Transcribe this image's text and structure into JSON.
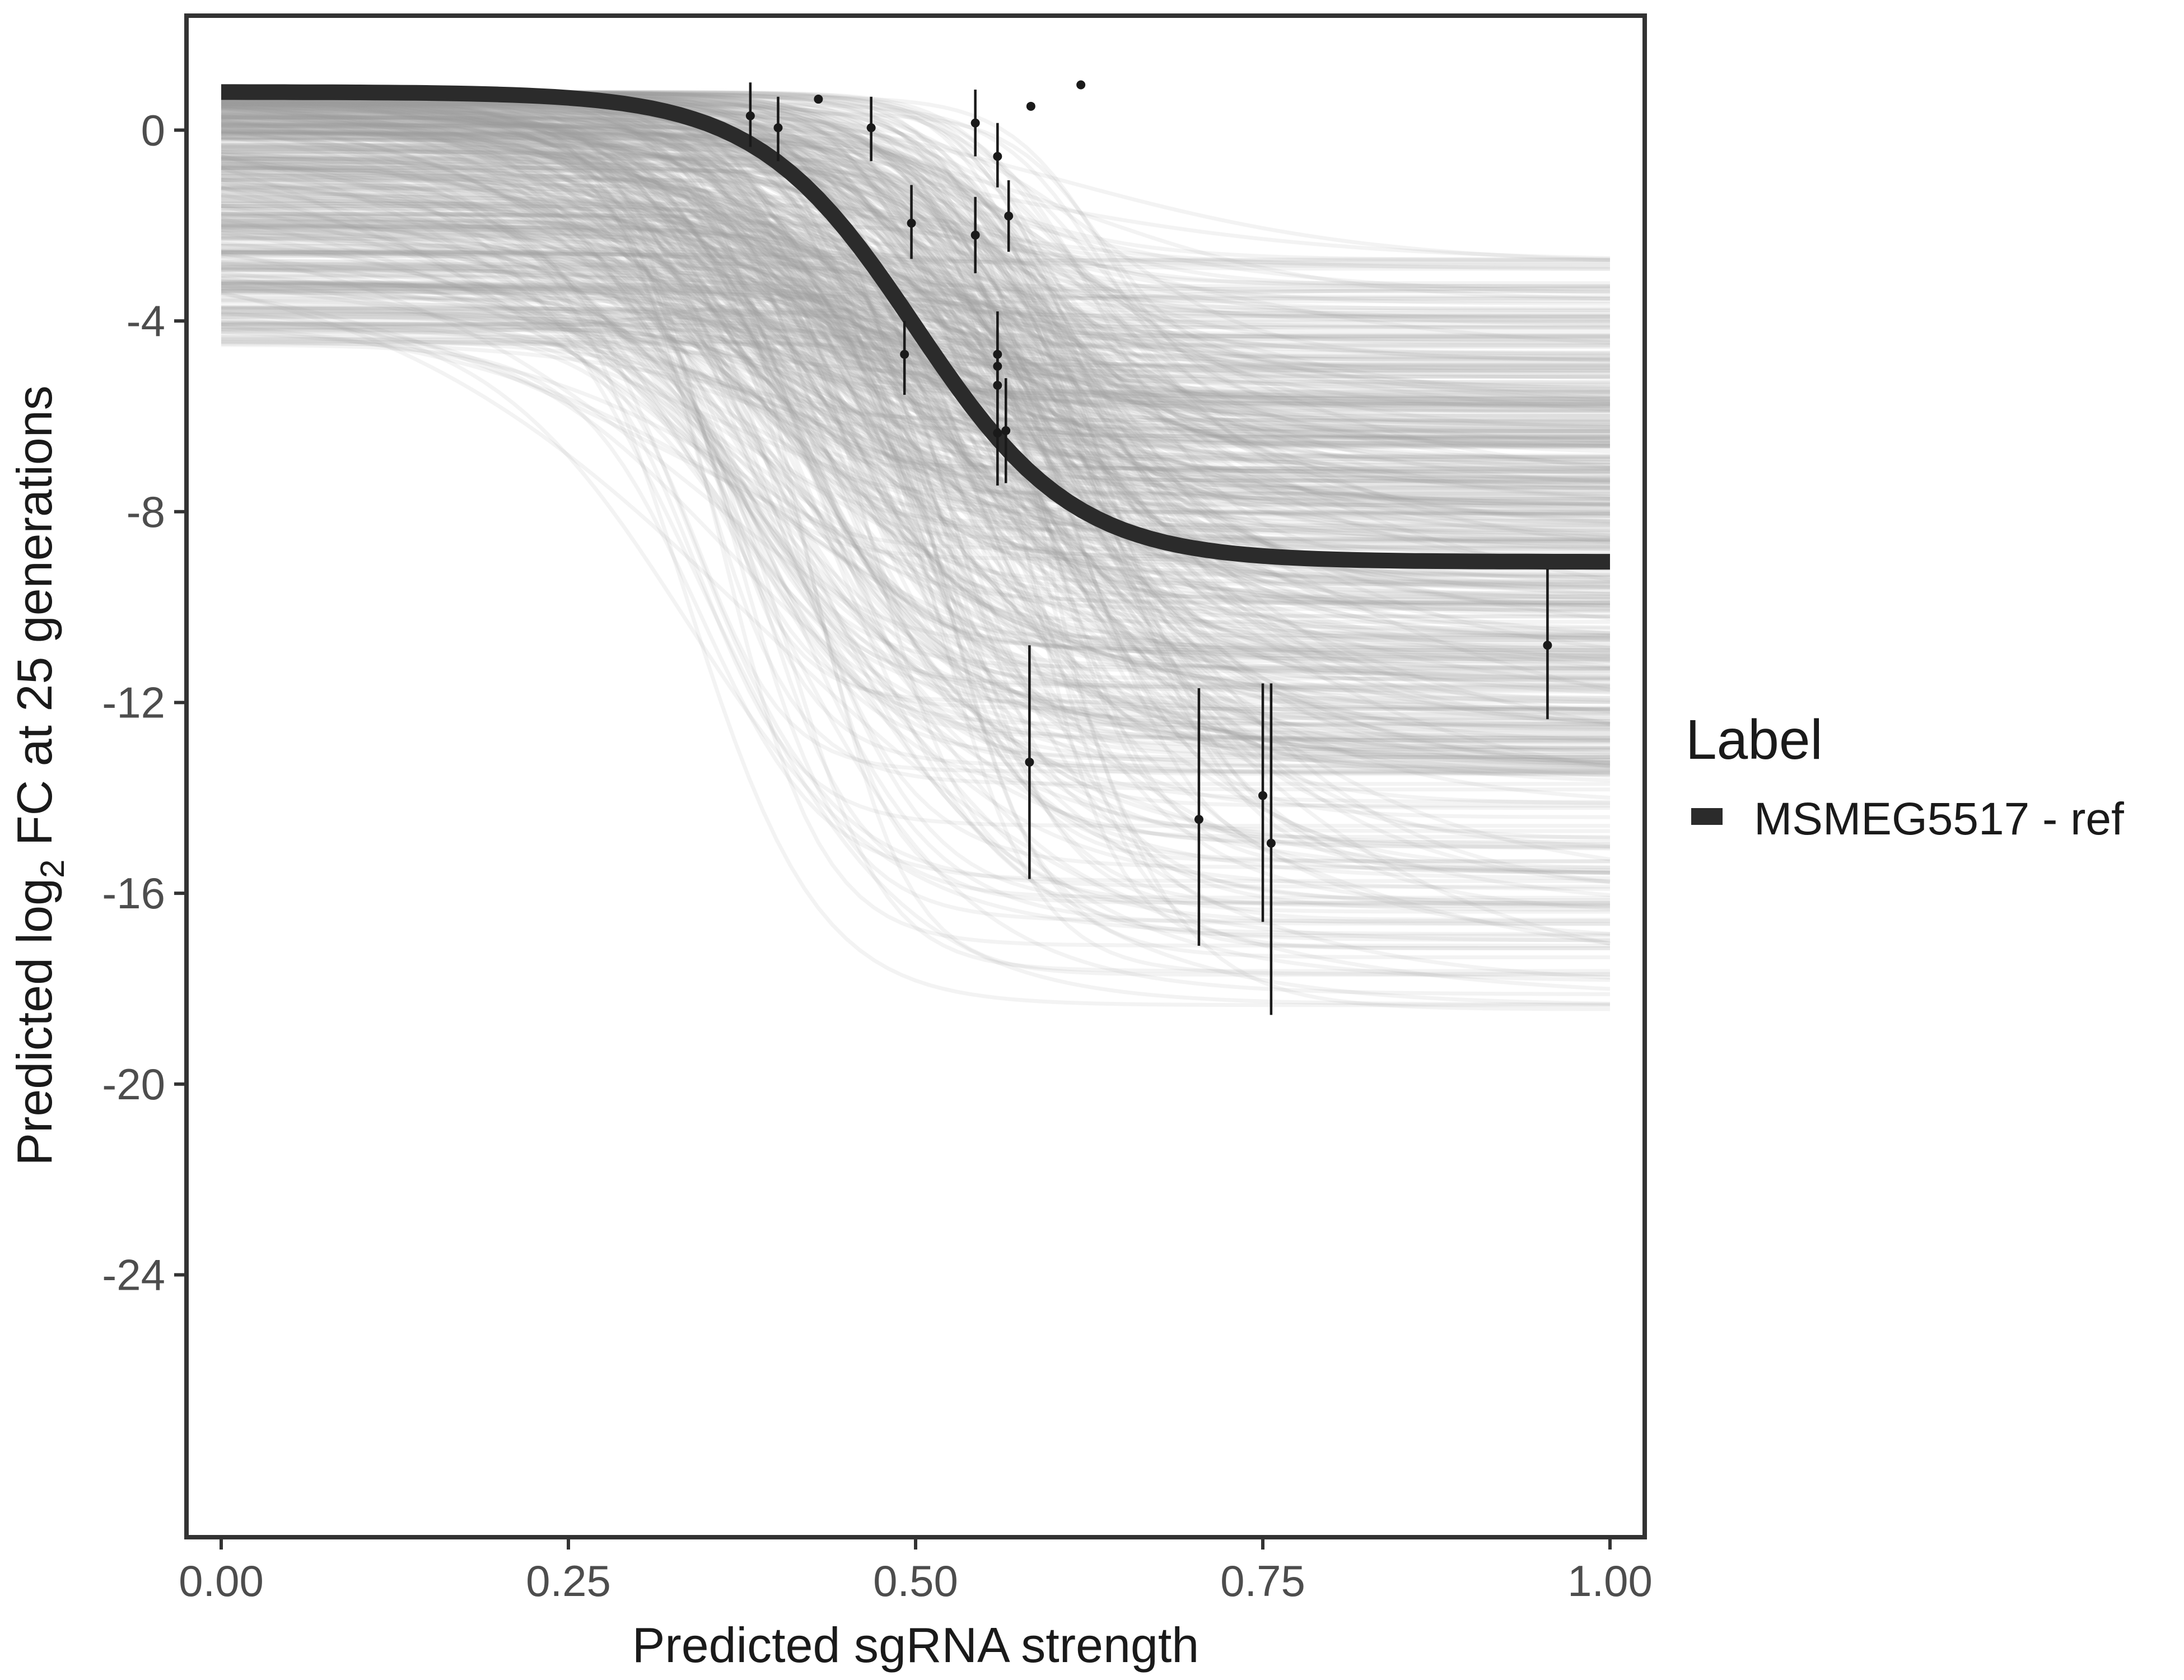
{
  "chart_data": {
    "type": "line",
    "title": "",
    "xlabel": "Predicted sgRNA strength",
    "ylabel": {
      "prefix": "Predicted  log",
      "subscript": "2",
      "suffix": " FC at 25 generations"
    },
    "xlim": [
      -0.025,
      1.025
    ],
    "ylim": [
      -29.5,
      2.4
    ],
    "x_ticks": [
      {
        "value": 0.0,
        "label": "0.00"
      },
      {
        "value": 0.25,
        "label": "0.25"
      },
      {
        "value": 0.5,
        "label": "0.50"
      },
      {
        "value": 0.75,
        "label": "0.75"
      },
      {
        "value": 1.0,
        "label": "1.00"
      }
    ],
    "y_ticks": [
      {
        "value": 0,
        "label": "0"
      },
      {
        "value": -4,
        "label": "-4"
      },
      {
        "value": -8,
        "label": "-8"
      },
      {
        "value": -12,
        "label": "-12"
      },
      {
        "value": -16,
        "label": "-16"
      },
      {
        "value": -20,
        "label": "-20"
      },
      {
        "value": -24,
        "label": "-24"
      }
    ],
    "grid": false,
    "legend": {
      "title": "Label",
      "position": "right",
      "entries": [
        {
          "label": "MSMEG5517 - ref",
          "color": "#2b2b2b"
        }
      ]
    },
    "colors": {
      "main_curve": "#2b2b2b",
      "posterior_draws": "#999999",
      "points": "#1a1a1a",
      "frame": "#333333"
    },
    "main_curve": {
      "name": "MSMEG5517 - ref",
      "model": "logistic",
      "upper": 0.8,
      "lower": -9.05,
      "midpoint": 0.5,
      "slope": 17.5
    },
    "posterior_draws": {
      "count": 600,
      "upper_range": [
        -4.5,
        0.8
      ],
      "lower_range": [
        -18.5,
        -2.7
      ],
      "midpoint_range": [
        0.33,
        0.64
      ],
      "slope_range": [
        6,
        32
      ]
    },
    "observations": [
      {
        "x": 0.381,
        "y": 0.3,
        "ymin": -0.35,
        "ymax": 1.0
      },
      {
        "x": 0.401,
        "y": 0.05,
        "ymin": -0.65,
        "ymax": 0.7
      },
      {
        "x": 0.43,
        "y": 0.65,
        "ymin": 0.62,
        "ymax": 0.68
      },
      {
        "x": 0.468,
        "y": 0.05,
        "ymin": -0.65,
        "ymax": 0.7
      },
      {
        "x": 0.497,
        "y": -1.95,
        "ymin": -2.7,
        "ymax": -1.15
      },
      {
        "x": 0.492,
        "y": -4.7,
        "ymin": -5.55,
        "ymax": -4.0
      },
      {
        "x": 0.543,
        "y": 0.15,
        "ymin": -0.55,
        "ymax": 0.85
      },
      {
        "x": 0.543,
        "y": -2.2,
        "ymin": -3.0,
        "ymax": -1.4
      },
      {
        "x": 0.559,
        "y": -0.55,
        "ymin": -1.2,
        "ymax": 0.15
      },
      {
        "x": 0.567,
        "y": -1.8,
        "ymin": -2.55,
        "ymax": -1.05
      },
      {
        "x": 0.559,
        "y": -4.7,
        "ymin": -5.5,
        "ymax": -3.8
      },
      {
        "x": 0.559,
        "y": -4.95,
        "ymin": -5.75,
        "ymax": -4.2
      },
      {
        "x": 0.559,
        "y": -5.35,
        "ymin": -6.1,
        "ymax": -4.55
      },
      {
        "x": 0.565,
        "y": -6.3,
        "ymin": -7.4,
        "ymax": -5.2
      },
      {
        "x": 0.559,
        "y": -6.35,
        "ymin": -7.45,
        "ymax": -5.25
      },
      {
        "x": 0.583,
        "y": 0.5,
        "ymin": 0.46,
        "ymax": 0.54
      },
      {
        "x": 0.619,
        "y": 0.95,
        "ymin": 0.92,
        "ymax": 0.98
      },
      {
        "x": 0.582,
        "y": -13.25,
        "ymin": -15.7,
        "ymax": -10.8
      },
      {
        "x": 0.704,
        "y": -14.45,
        "ymin": -17.1,
        "ymax": -11.7
      },
      {
        "x": 0.75,
        "y": -13.95,
        "ymin": -16.6,
        "ymax": -11.6
      },
      {
        "x": 0.756,
        "y": -14.95,
        "ymin": -18.55,
        "ymax": -11.6
      },
      {
        "x": 0.955,
        "y": -10.8,
        "ymin": -12.35,
        "ymax": -9.2
      }
    ]
  }
}
